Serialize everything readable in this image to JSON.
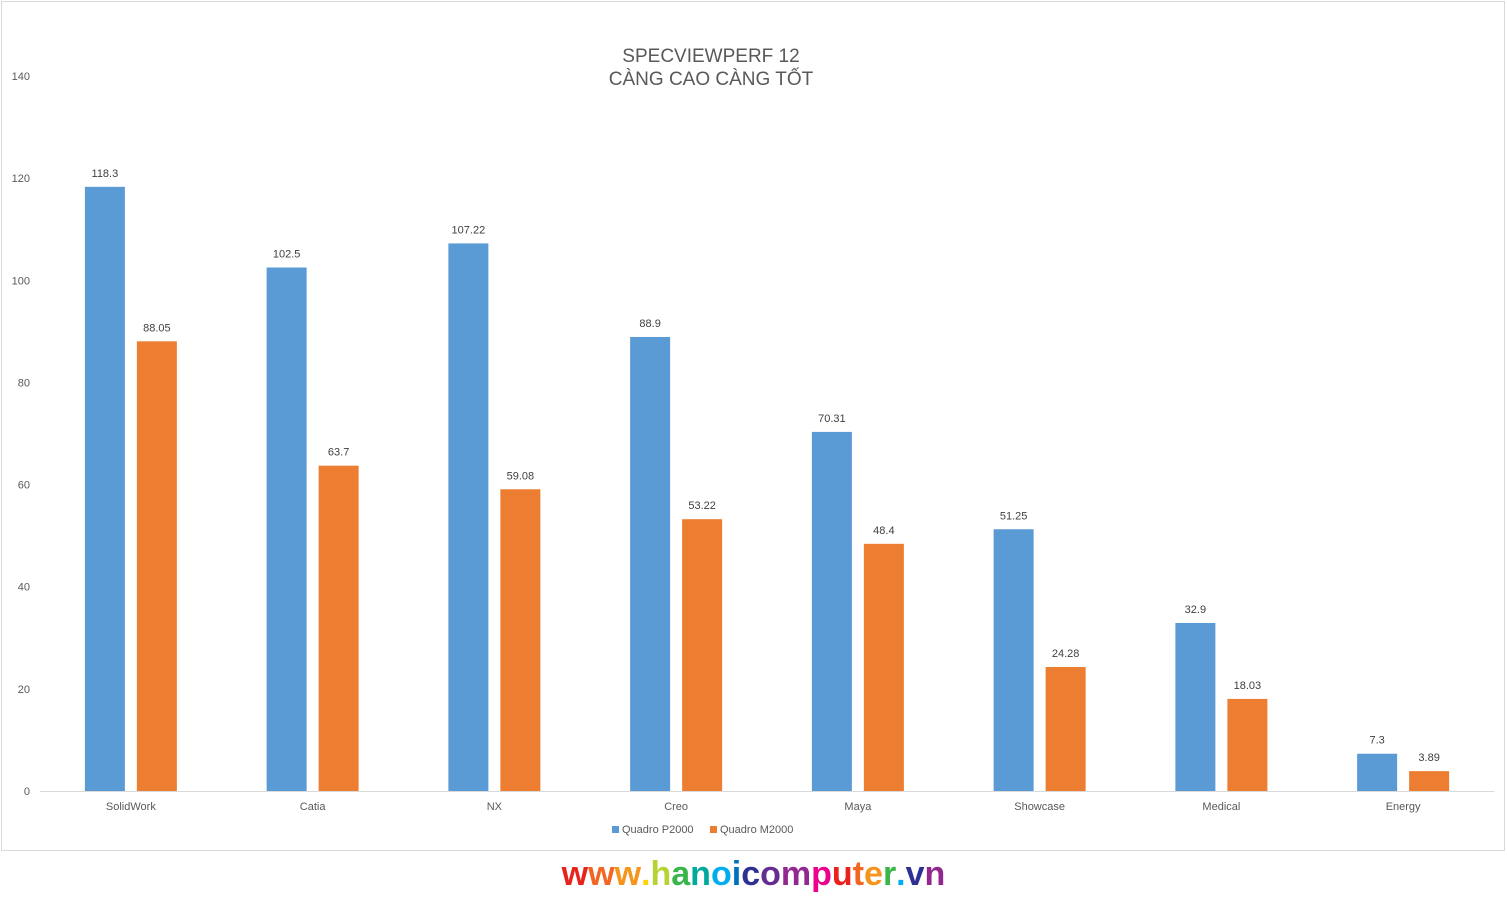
{
  "chart_data": {
    "type": "bar",
    "title": [
      "SPECVIEWPERF 12",
      "CÀNG CAO CÀNG TỐT"
    ],
    "categories": [
      "SolidWork",
      "Catia",
      "NX",
      "Creo",
      "Maya",
      "Showcase",
      "Medical",
      "Energy"
    ],
    "series": [
      {
        "name": "Quadro P2000",
        "color": "#5b9bd5",
        "values": [
          118.3,
          102.5,
          107.22,
          88.9,
          70.31,
          51.25,
          32.9,
          7.3
        ]
      },
      {
        "name": "Quadro M2000",
        "color": "#ed7d31",
        "values": [
          88.05,
          63.7,
          59.08,
          53.22,
          48.4,
          24.28,
          18.03,
          3.89
        ]
      }
    ],
    "ylim": [
      0,
      140
    ],
    "yticks": [
      0,
      20,
      40,
      60,
      80,
      100,
      120,
      140
    ],
    "grid": false,
    "legend": "bottom",
    "xlabel": "",
    "ylabel": ""
  },
  "watermark": {
    "text": "www.hanoicomputer.vn",
    "colors": [
      "#e8221c",
      "#f26522",
      "#f7941d",
      "#ffd200",
      "#b5d334",
      "#39b54a",
      "#00a99d",
      "#00aeef",
      "#0072bc",
      "#2e3192",
      "#662d91",
      "#92278f",
      "#ec008c",
      "#e8221c",
      "#f26522",
      "#f7941d",
      "#39b54a",
      "#00aeef",
      "#2e3192",
      "#92278f"
    ]
  }
}
